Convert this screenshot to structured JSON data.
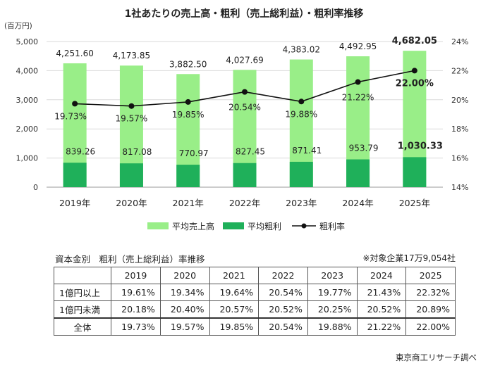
{
  "title": "1社あたりの売上高・粗利（売上総利益）・粗利率推移",
  "chart_data": {
    "type": "bar",
    "categories": [
      "2019年",
      "2020年",
      "2021年",
      "2022年",
      "2023年",
      "2024年",
      "2025年"
    ],
    "series": [
      {
        "name": "平均売上高",
        "type": "bar",
        "axis": "left",
        "color": "#99ee88",
        "values": [
          4251.6,
          4173.85,
          3882.5,
          4027.69,
          4383.02,
          4492.95,
          4682.05
        ],
        "labels": [
          "4,251.60",
          "4,173.85",
          "3,882.50",
          "4,027.69",
          "4,383.02",
          "4,492.95",
          "4,682.05"
        ]
      },
      {
        "name": "平均粗利",
        "type": "bar",
        "axis": "left",
        "color": "#1fb05a",
        "values": [
          839.26,
          817.08,
          770.97,
          827.45,
          871.41,
          953.79,
          1030.33
        ],
        "labels": [
          "839.26",
          "817.08",
          "770.97",
          "827.45",
          "871.41",
          "953.79",
          "1,030.33"
        ]
      },
      {
        "name": "粗利率",
        "type": "line",
        "axis": "right",
        "color": "#111111",
        "values": [
          19.73,
          19.57,
          19.85,
          20.54,
          19.88,
          21.22,
          22.0
        ],
        "labels": [
          "19.73%",
          "19.57%",
          "19.85%",
          "20.54%",
          "19.88%",
          "21.22%",
          "22.00%"
        ]
      }
    ],
    "y_left": {
      "unit": "(百万円)",
      "ylim": [
        0,
        5000
      ],
      "ticks": [
        "0",
        "1,000",
        "2,000",
        "3,000",
        "4,000",
        "5,000"
      ],
      "tick_values": [
        0,
        1000,
        2000,
        3000,
        4000,
        5000
      ]
    },
    "y_right": {
      "ylim": [
        14,
        24
      ],
      "ticks": [
        "14%",
        "16%",
        "18%",
        "20%",
        "22%",
        "24%"
      ],
      "tick_values": [
        14,
        16,
        18,
        20,
        22,
        24
      ]
    },
    "grid": true,
    "legend_position": "bottom"
  },
  "table": {
    "caption": "資本金別　粗利（売上総利益）率推移",
    "note": "※対象企業17万9,054社",
    "headers": [
      "",
      "2019",
      "2020",
      "2021",
      "2022",
      "2023",
      "2024",
      "2025"
    ],
    "rows": [
      {
        "label": "1億円以上",
        "values": [
          "19.61%",
          "19.34%",
          "19.64%",
          "20.54%",
          "19.77%",
          "21.43%",
          "22.32%"
        ]
      },
      {
        "label": "1億円未満",
        "values": [
          "20.18%",
          "20.40%",
          "20.57%",
          "20.52%",
          "20.25%",
          "20.52%",
          "20.89%"
        ]
      },
      {
        "label": "全体",
        "values": [
          "19.73%",
          "19.57%",
          "19.85%",
          "20.54%",
          "19.88%",
          "21.22%",
          "22.00%"
        ]
      }
    ]
  },
  "source": "東京商工リサーチ調べ"
}
